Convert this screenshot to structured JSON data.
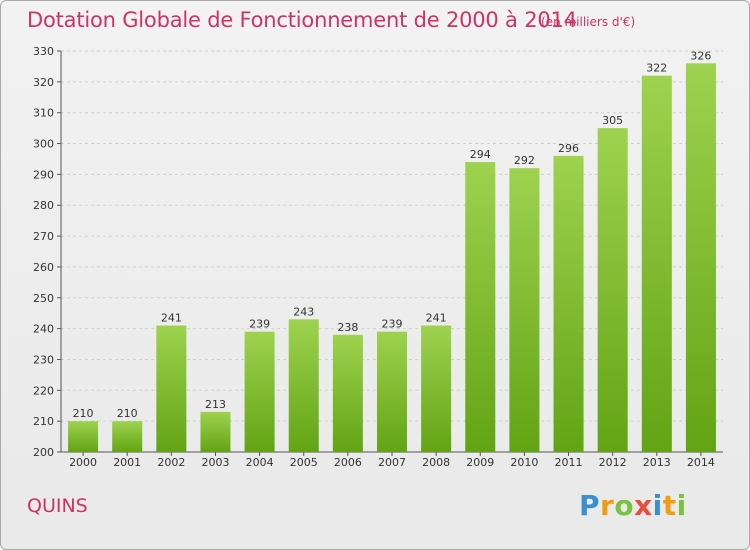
{
  "header": {
    "title": "Dotation Globale de Fonctionnement de 2000 à 2014",
    "subtitle": "(en milliers d'€)"
  },
  "footer": {
    "commune": "QUINS",
    "logo_letters": [
      "P",
      "r",
      "o",
      "x",
      "i",
      "t",
      "i"
    ]
  },
  "colors": {
    "bar_top": "#9ed250",
    "bar_bottom": "#62a414",
    "title": "#cc3366",
    "grid": "#d0d0d0"
  },
  "chart_data": {
    "type": "bar",
    "title": "Dotation Globale de Fonctionnement de 2000 à 2014",
    "subtitle": "(en milliers d'€)",
    "xlabel": "",
    "ylabel": "",
    "categories": [
      "2000",
      "2001",
      "2002",
      "2003",
      "2004",
      "2005",
      "2006",
      "2007",
      "2008",
      "2009",
      "2010",
      "2011",
      "2012",
      "2013",
      "2014"
    ],
    "values": [
      210,
      210,
      241,
      213,
      239,
      243,
      238,
      239,
      241,
      294,
      292,
      296,
      305,
      322,
      326
    ],
    "ylim": [
      200,
      330
    ],
    "yticks": [
      200,
      210,
      220,
      230,
      240,
      250,
      260,
      270,
      280,
      290,
      300,
      310,
      320,
      330
    ],
    "grid": true,
    "legend": "none"
  }
}
